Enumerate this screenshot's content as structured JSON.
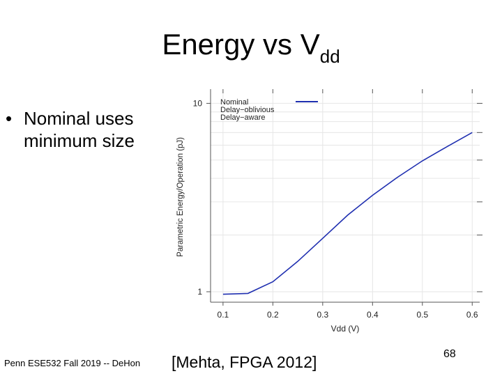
{
  "slide": {
    "title_main": "Energy vs V",
    "title_sub": "dd",
    "bullet_symbol": "•",
    "bullet_text": "Nominal uses minimum size",
    "footer_left": "Penn ESE532 Fall 2019 -- DeHon",
    "citation": "[Mehta,  FPGA 2012]",
    "page_number": "68"
  },
  "chart_data": {
    "type": "line",
    "title": "",
    "xlabel": "Vdd (V)",
    "ylabel": "Parametric Energy/Operation (pJ)",
    "xlim": [
      0.075,
      0.615
    ],
    "ylim": [
      0.88,
      11.5
    ],
    "yscale": "log",
    "xticks": [
      0.1,
      0.2,
      0.3,
      0.4,
      0.5,
      0.6
    ],
    "xtick_labels": [
      "0.1",
      "0.2",
      "0.3",
      "0.4",
      "0.5",
      "0.6"
    ],
    "yticks_labeled": [
      1,
      10
    ],
    "ytick_labels": [
      "1",
      "10"
    ],
    "legend": [
      "Nominal",
      "Delay−oblivious",
      "Delay−aware"
    ],
    "legend_position": "top-left",
    "line_color": "#1f2fb0",
    "series": [
      {
        "name": "Nominal",
        "x": [
          0.1,
          0.15,
          0.2,
          0.25,
          0.3,
          0.35,
          0.4,
          0.45,
          0.5,
          0.55,
          0.6
        ],
        "y": [
          0.97,
          0.98,
          1.13,
          1.45,
          1.92,
          2.55,
          3.25,
          4.05,
          4.95,
          5.9,
          7.0
        ]
      }
    ]
  }
}
